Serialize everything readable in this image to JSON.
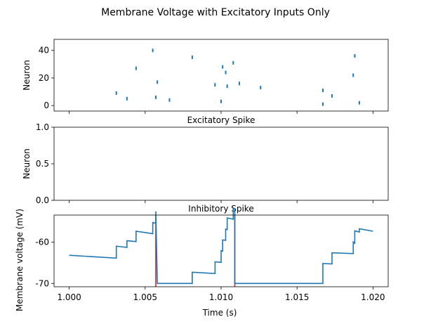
{
  "figure": {
    "title": "Membrane Voltage with Excitatory Inputs Only"
  },
  "chart_data": [
    {
      "type": "scatter",
      "ylabel": "Neuron",
      "xlim": [
        0.999,
        1.021
      ],
      "ylim": [
        -4,
        48
      ],
      "yticks": [
        0,
        20,
        40
      ],
      "marker": "|",
      "color": "#1f77b4",
      "points": [
        {
          "x": 1.0031,
          "y": 9
        },
        {
          "x": 1.0038,
          "y": 5
        },
        {
          "x": 1.0044,
          "y": 27
        },
        {
          "x": 1.0055,
          "y": 40
        },
        {
          "x": 1.0057,
          "y": 6
        },
        {
          "x": 1.0058,
          "y": 17
        },
        {
          "x": 1.0066,
          "y": 4
        },
        {
          "x": 1.0081,
          "y": 35
        },
        {
          "x": 1.0096,
          "y": 15
        },
        {
          "x": 1.01,
          "y": 3
        },
        {
          "x": 1.0101,
          "y": 28
        },
        {
          "x": 1.0103,
          "y": 24
        },
        {
          "x": 1.0104,
          "y": 14
        },
        {
          "x": 1.0108,
          "y": 31
        },
        {
          "x": 1.0112,
          "y": 16
        },
        {
          "x": 1.0126,
          "y": 13
        },
        {
          "x": 1.0167,
          "y": 11
        },
        {
          "x": 1.0167,
          "y": 1
        },
        {
          "x": 1.0173,
          "y": 7
        },
        {
          "x": 1.0187,
          "y": 22
        },
        {
          "x": 1.0188,
          "y": 36
        },
        {
          "x": 1.0191,
          "y": 2
        }
      ]
    },
    {
      "type": "scatter",
      "title": "Excitatory Spike",
      "ylabel": "Neuron",
      "xlim": [
        0.999,
        1.021
      ],
      "ylim": [
        0.0,
        1.0
      ],
      "yticks": [
        "0.0",
        "0.5",
        "1.0"
      ],
      "points": []
    },
    {
      "type": "line",
      "title": "Inhibitory Spike",
      "xlabel": "Time (s)",
      "ylabel": "Membrane voltage (mV)",
      "xlim": [
        0.999,
        1.021
      ],
      "ylim": [
        -70.8,
        -53.5
      ],
      "xticks": [
        "1.000",
        "1.005",
        "1.010",
        "1.015",
        "1.020"
      ],
      "yticks": [
        -60,
        -70
      ],
      "series": [
        {
          "color": "#1f77b4",
          "x": [
            1.0,
            1.0031,
            1.0031,
            1.0038,
            1.0038,
            1.0044,
            1.0044,
            1.0055,
            1.0055,
            1.0057,
            1.0057,
            1.0058,
            1.0058,
            1.0066,
            1.0066,
            1.0081,
            1.0081,
            1.0096,
            1.0096,
            1.01,
            1.01,
            1.0101,
            1.0101,
            1.0103,
            1.0103,
            1.0104,
            1.0104,
            1.0108,
            1.0108,
            1.0109,
            1.0109,
            1.0167,
            1.0167,
            1.0173,
            1.0173,
            1.0187,
            1.0187,
            1.0188,
            1.0188,
            1.0191,
            1.0191,
            1.02
          ],
          "y": [
            -63.2,
            -63.9,
            -61.0,
            -61.3,
            -59.7,
            -59.9,
            -57.4,
            -58.0,
            -55.3,
            -55.5,
            -52.6,
            -70.0,
            -70.0,
            -70.0,
            -70.0,
            -70.0,
            -67.3,
            -67.6,
            -64.8,
            -64.9,
            -62.1,
            -62.2,
            -59.5,
            -59.6,
            -56.9,
            -57.0,
            -54.2,
            -54.5,
            -51.8,
            -52.0,
            -70.0,
            -70.0,
            -65.2,
            -65.3,
            -62.6,
            -62.8,
            -60.0,
            -60.3,
            -57.3,
            -57.6,
            -56.8,
            -57.4
          ]
        }
      ],
      "vlines": {
        "color": "#d62728",
        "x": [
          1.0057,
          1.0109
        ]
      }
    }
  ]
}
